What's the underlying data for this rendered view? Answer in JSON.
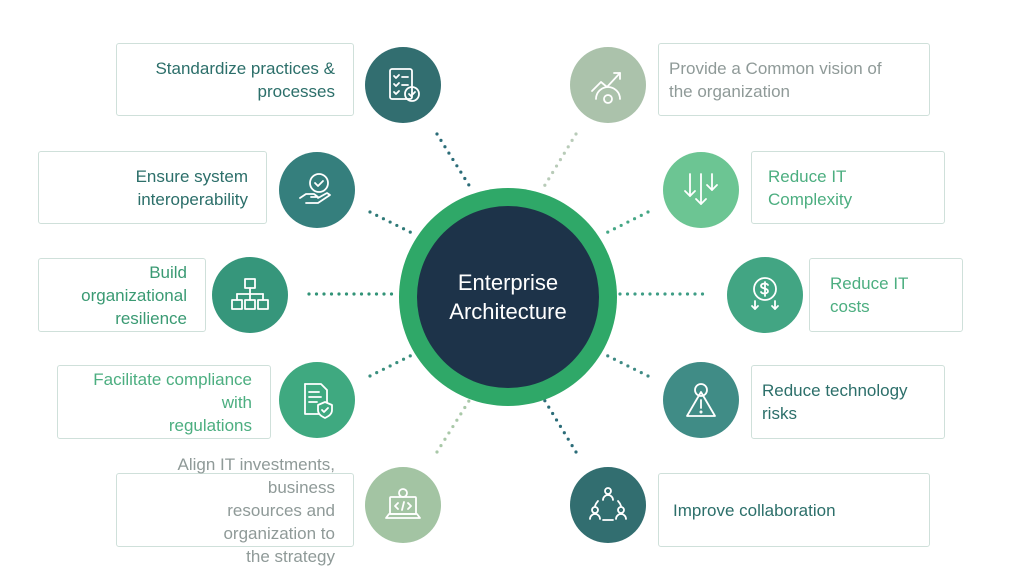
{
  "center": {
    "title": "Enterprise\nArchitecture"
  },
  "colors": {
    "center_ring": "#2fa868",
    "center_fill": "#1d3349",
    "text_dark_teal": "#2c6f6a",
    "text_green": "#4cae80",
    "text_gray": "#8f9a98",
    "box_border": "#cfe0da"
  },
  "items": [
    {
      "label": "Standardize practices &\nprocesses",
      "icon": "checklist-icon",
      "side": "left"
    },
    {
      "label": "Ensure system interoperability",
      "icon": "hand-shield-check-icon",
      "side": "left"
    },
    {
      "label": "Build organizational\nresilience",
      "icon": "hierarchy-icon",
      "side": "left"
    },
    {
      "label": "Facilitate compliance with\nregulations",
      "icon": "document-shield-icon",
      "side": "left"
    },
    {
      "label": "Align IT investments, business\nresources and organization to\nthe strategy",
      "icon": "laptop-code-gear-icon",
      "side": "left"
    },
    {
      "label": "Provide a Common vision of\nthe organization",
      "icon": "growth-chart-icon",
      "side": "right"
    },
    {
      "label": "Reduce IT Complexity",
      "icon": "down-arrows-icon",
      "side": "right"
    },
    {
      "label": "Reduce IT costs",
      "icon": "dollar-coin-down-icon",
      "side": "right"
    },
    {
      "label": "Reduce technology risks",
      "icon": "warning-gear-icon",
      "side": "right"
    },
    {
      "label": "Improve collaboration",
      "icon": "people-cycle-icon",
      "side": "right"
    }
  ]
}
